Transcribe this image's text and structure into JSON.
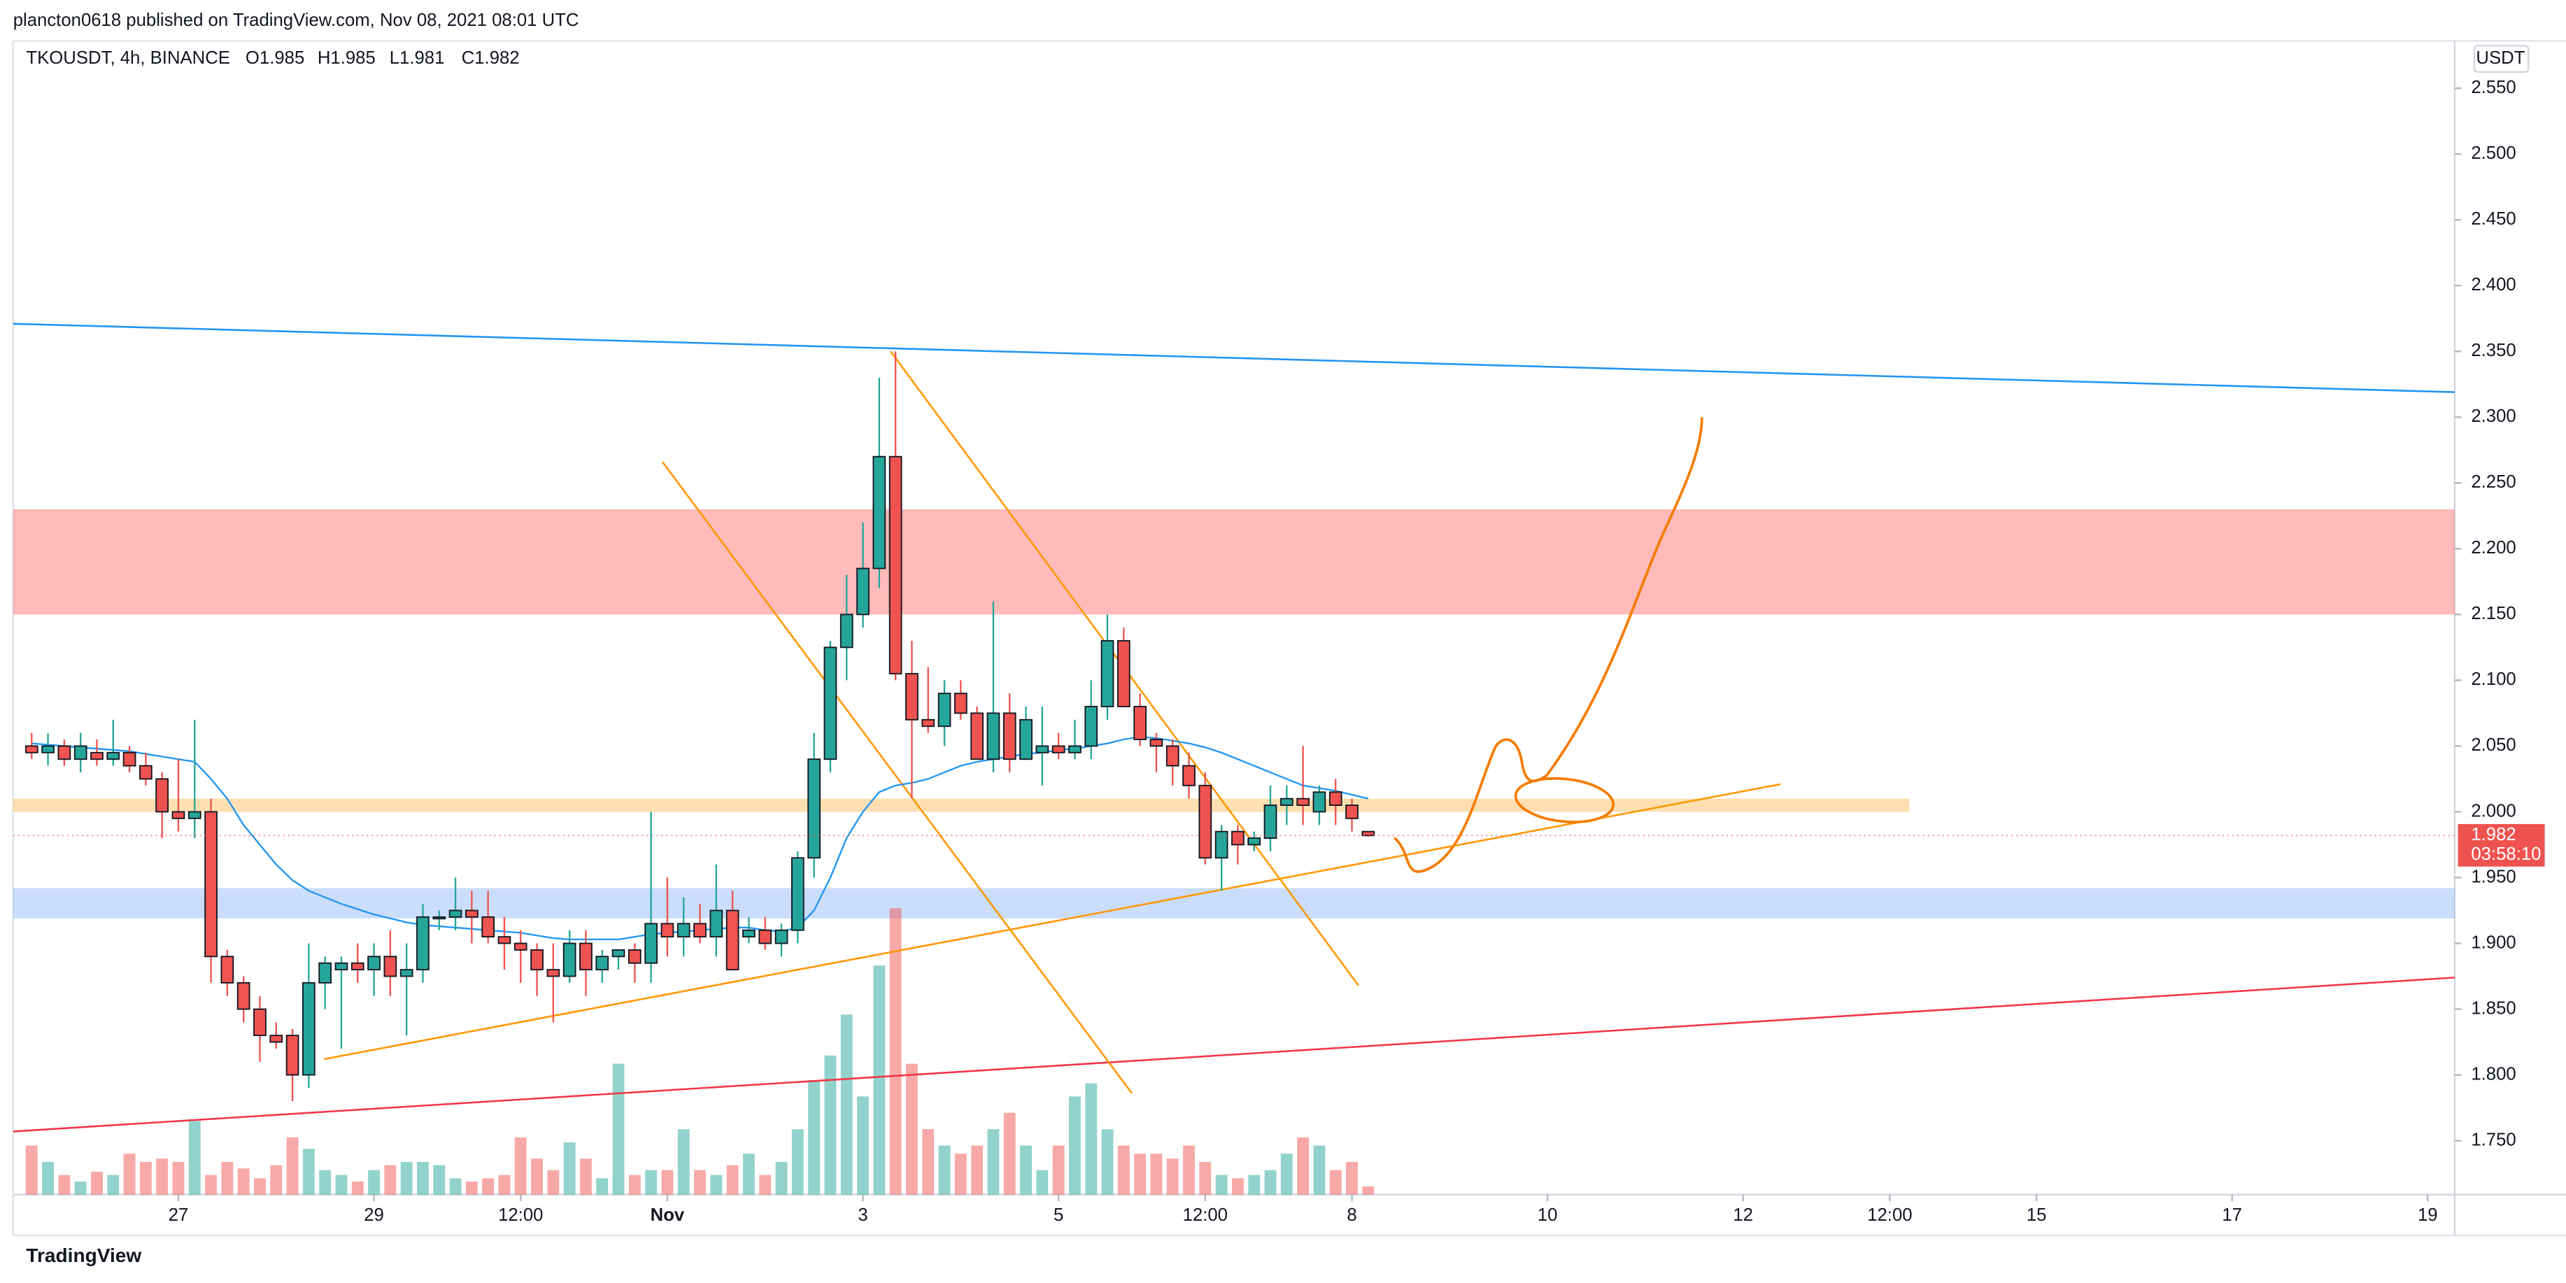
{
  "header": {
    "published": "plancton0618 published on TradingView.com, Nov 08, 2021 08:01 UTC"
  },
  "footer": {
    "brand": "TradingView"
  },
  "chart_data": {
    "type": "candlestick",
    "symbol": "TKOUSDT, 4h, BINANCE",
    "ohlc_labels": [
      "O1.985",
      "H1.985",
      "L1.981",
      "C1.982"
    ],
    "currency": "USDT",
    "up_color": "#26a69a",
    "down_color": "#ef5350",
    "x": [
      -9,
      -8,
      -7,
      -6,
      -5,
      -4,
      -3,
      -2,
      -1,
      0,
      1,
      2,
      3,
      4,
      5,
      6,
      7,
      8,
      9,
      10,
      11,
      12,
      13,
      14,
      15,
      16,
      17,
      18,
      19,
      20,
      21,
      22,
      23,
      24,
      25,
      26,
      27,
      28,
      29,
      30,
      31,
      32,
      33,
      34,
      35,
      36,
      37,
      38,
      39,
      40,
      41,
      42,
      43,
      44,
      45,
      46,
      47,
      48,
      49,
      50,
      51,
      52,
      53,
      54,
      55,
      56,
      57,
      58,
      59,
      60,
      61,
      62,
      63,
      64,
      65,
      66,
      67,
      68,
      69,
      70,
      71,
      72,
      73
    ],
    "candles": [
      [
        2.05,
        2.06,
        2.04,
        2.045
      ],
      [
        2.045,
        2.06,
        2.035,
        2.05
      ],
      [
        2.05,
        2.055,
        2.035,
        2.04
      ],
      [
        2.04,
        2.06,
        2.03,
        2.05
      ],
      [
        2.045,
        2.055,
        2.035,
        2.04
      ],
      [
        2.04,
        2.07,
        2.035,
        2.045
      ],
      [
        2.045,
        2.05,
        2.03,
        2.035
      ],
      [
        2.035,
        2.045,
        2.02,
        2.025
      ],
      [
        2.025,
        2.03,
        1.98,
        2.0
      ],
      [
        2.0,
        2.04,
        1.985,
        1.995
      ],
      [
        1.995,
        2.07,
        1.98,
        2.0
      ],
      [
        2.0,
        2.01,
        1.87,
        1.89
      ],
      [
        1.89,
        1.895,
        1.86,
        1.87
      ],
      [
        1.87,
        1.875,
        1.84,
        1.85
      ],
      [
        1.85,
        1.86,
        1.81,
        1.83
      ],
      [
        1.83,
        1.84,
        1.82,
        1.825
      ],
      [
        1.83,
        1.835,
        1.78,
        1.8
      ],
      [
        1.8,
        1.9,
        1.79,
        1.87
      ],
      [
        1.87,
        1.89,
        1.85,
        1.885
      ],
      [
        1.88,
        1.89,
        1.82,
        1.885
      ],
      [
        1.885,
        1.9,
        1.87,
        1.88
      ],
      [
        1.88,
        1.9,
        1.86,
        1.89
      ],
      [
        1.89,
        1.91,
        1.86,
        1.875
      ],
      [
        1.875,
        1.9,
        1.83,
        1.88
      ],
      [
        1.88,
        1.93,
        1.87,
        1.92
      ],
      [
        1.92,
        1.925,
        1.91,
        1.92
      ],
      [
        1.92,
        1.95,
        1.91,
        1.925
      ],
      [
        1.925,
        1.94,
        1.9,
        1.92
      ],
      [
        1.92,
        1.94,
        1.9,
        1.905
      ],
      [
        1.905,
        1.92,
        1.88,
        1.9
      ],
      [
        1.9,
        1.91,
        1.87,
        1.895
      ],
      [
        1.895,
        1.9,
        1.86,
        1.88
      ],
      [
        1.88,
        1.9,
        1.84,
        1.875
      ],
      [
        1.875,
        1.91,
        1.87,
        1.9
      ],
      [
        1.9,
        1.91,
        1.86,
        1.88
      ],
      [
        1.88,
        1.895,
        1.87,
        1.89
      ],
      [
        1.89,
        1.895,
        1.88,
        1.895
      ],
      [
        1.895,
        1.9,
        1.87,
        1.885
      ],
      [
        1.885,
        2.0,
        1.87,
        1.915
      ],
      [
        1.915,
        1.95,
        1.89,
        1.905
      ],
      [
        1.905,
        1.935,
        1.89,
        1.915
      ],
      [
        1.915,
        1.93,
        1.9,
        1.905
      ],
      [
        1.905,
        1.96,
        1.89,
        1.925
      ],
      [
        1.925,
        1.94,
        1.88,
        1.88
      ],
      [
        1.905,
        1.92,
        1.9,
        1.91
      ],
      [
        1.91,
        1.92,
        1.895,
        1.9
      ],
      [
        1.9,
        1.915,
        1.89,
        1.91
      ],
      [
        1.91,
        1.97,
        1.9,
        1.965
      ],
      [
        1.965,
        2.06,
        1.95,
        2.04
      ],
      [
        2.04,
        2.13,
        2.03,
        2.125
      ],
      [
        2.125,
        2.18,
        2.1,
        2.15
      ],
      [
        2.15,
        2.22,
        2.14,
        2.185
      ],
      [
        2.185,
        2.33,
        2.17,
        2.27
      ],
      [
        2.27,
        2.35,
        2.1,
        2.105
      ],
      [
        2.105,
        2.13,
        2.01,
        2.07
      ],
      [
        2.07,
        2.11,
        2.06,
        2.065
      ],
      [
        2.065,
        2.1,
        2.05,
        2.09
      ],
      [
        2.09,
        2.1,
        2.07,
        2.075
      ],
      [
        2.075,
        2.08,
        2.04,
        2.04
      ],
      [
        2.04,
        2.16,
        2.03,
        2.075
      ],
      [
        2.075,
        2.09,
        2.03,
        2.04
      ],
      [
        2.04,
        2.08,
        2.04,
        2.07
      ],
      [
        2.045,
        2.08,
        2.02,
        2.05
      ],
      [
        2.05,
        2.06,
        2.04,
        2.045
      ],
      [
        2.045,
        2.07,
        2.04,
        2.05
      ],
      [
        2.05,
        2.1,
        2.04,
        2.08
      ],
      [
        2.08,
        2.15,
        2.07,
        2.13
      ],
      [
        2.13,
        2.14,
        2.08,
        2.08
      ],
      [
        2.08,
        2.09,
        2.05,
        2.055
      ],
      [
        2.055,
        2.06,
        2.03,
        2.05
      ],
      [
        2.05,
        2.055,
        2.02,
        2.035
      ],
      [
        2.035,
        2.045,
        2.01,
        2.02
      ],
      [
        2.02,
        2.03,
        1.96,
        1.965
      ],
      [
        1.965,
        1.99,
        1.94,
        1.985
      ],
      [
        1.985,
        1.99,
        1.96,
        1.975
      ],
      [
        1.975,
        1.985,
        1.97,
        1.98
      ],
      [
        1.98,
        2.02,
        1.97,
        2.005
      ],
      [
        2.005,
        2.02,
        1.99,
        2.01
      ],
      [
        2.01,
        2.05,
        1.99,
        2.005
      ],
      [
        2.0,
        2.02,
        1.99,
        2.015
      ],
      [
        2.015,
        2.025,
        1.99,
        2.005
      ],
      [
        2.005,
        2.01,
        1.985,
        1.995
      ],
      [
        1.985,
        1.985,
        1.981,
        1.982
      ]
    ],
    "volumes": [
      30,
      20,
      12,
      8,
      14,
      12,
      25,
      20,
      22,
      20,
      45,
      12,
      20,
      16,
      10,
      18,
      35,
      28,
      15,
      12,
      8,
      15,
      18,
      20,
      20,
      18,
      10,
      8,
      10,
      12,
      35,
      22,
      15,
      32,
      22,
      10,
      80,
      12,
      15,
      15,
      40,
      15,
      12,
      18,
      25,
      12,
      20,
      40,
      70,
      85,
      110,
      60,
      140,
      175,
      80,
      40,
      30,
      25,
      30,
      40,
      50,
      30,
      15,
      30,
      60,
      68,
      40,
      30,
      25,
      25,
      22,
      30,
      20,
      12,
      10,
      12,
      15,
      25,
      35,
      30,
      15,
      20,
      5
    ],
    "ma": {
      "color": "#2196f3",
      "values": [
        2.052,
        2.051,
        2.05,
        2.049,
        2.048,
        2.047,
        2.046,
        2.044,
        2.042,
        2.04,
        2.038,
        2.025,
        2.01,
        1.99,
        1.975,
        1.96,
        1.948,
        1.94,
        1.935,
        1.93,
        1.926,
        1.922,
        1.919,
        1.916,
        1.914,
        1.913,
        1.912,
        1.911,
        1.91,
        1.909,
        1.908,
        1.906,
        1.904,
        1.903,
        1.903,
        1.903,
        1.903,
        1.905,
        1.907,
        1.908,
        1.909,
        1.91,
        1.911,
        1.912,
        1.912,
        1.91,
        1.909,
        1.912,
        1.925,
        1.95,
        1.98,
        2.0,
        2.015,
        2.02,
        2.022,
        2.025,
        2.03,
        2.035,
        2.038,
        2.04,
        2.042,
        2.044,
        2.045,
        2.047,
        2.048,
        2.05,
        2.052,
        2.055,
        2.057,
        2.056,
        2.054,
        2.052,
        2.049,
        2.045,
        2.04,
        2.035,
        2.03,
        2.025,
        2.02,
        2.018,
        2.016,
        2.013,
        2.01
      ]
    },
    "xlim": [
      -10.14,
      139.66
    ],
    "ylim": [
      1.709,
      2.586
    ],
    "xticks": [
      {
        "value": 0,
        "label": "27"
      },
      {
        "value": 12,
        "label": "29"
      },
      {
        "value": 21,
        "label": "12:00"
      },
      {
        "value": 30,
        "label": "Nov"
      },
      {
        "value": 42,
        "label": "3"
      },
      {
        "value": 54,
        "label": "5"
      },
      {
        "value": 63,
        "label": "12:00"
      },
      {
        "value": 72,
        "label": "8"
      },
      {
        "value": 84,
        "label": "10"
      },
      {
        "value": 96,
        "label": "12"
      },
      {
        "value": 105,
        "label": "12:00"
      },
      {
        "value": 114,
        "label": "15"
      },
      {
        "value": 126,
        "label": "17"
      },
      {
        "value": 138,
        "label": "19"
      }
    ],
    "yticks": [
      {
        "value": 1.75,
        "label": "1.750"
      },
      {
        "value": 1.8,
        "label": "1.800"
      },
      {
        "value": 1.85,
        "label": "1.850"
      },
      {
        "value": 1.9,
        "label": "1.900"
      },
      {
        "value": 1.95,
        "label": "1.950"
      },
      {
        "value": 2.0,
        "label": "2.000"
      },
      {
        "value": 2.05,
        "label": "2.050"
      },
      {
        "value": 2.1,
        "label": "2.100"
      },
      {
        "value": 2.15,
        "label": "2.150"
      },
      {
        "value": 2.2,
        "label": "2.200"
      },
      {
        "value": 2.25,
        "label": "2.250"
      },
      {
        "value": 2.3,
        "label": "2.300"
      },
      {
        "value": 2.35,
        "label": "2.350"
      },
      {
        "value": 2.4,
        "label": "2.400"
      },
      {
        "value": 2.45,
        "label": "2.450"
      },
      {
        "value": 2.5,
        "label": "2.500"
      },
      {
        "value": 2.55,
        "label": "2.550"
      }
    ],
    "zones": [
      {
        "from": 2.15,
        "to": 2.23,
        "x_end": 139.66,
        "color": "rgba(255,82,82,0.4)"
      },
      {
        "from": 2.0,
        "to": 2.01,
        "x_end": 106.2,
        "color": "rgba(255,183,77,0.45)"
      },
      {
        "from": 1.919,
        "to": 1.942,
        "x_end": 139.66,
        "color": "rgba(66,133,244,0.28)"
      }
    ],
    "lines": [
      {
        "x": [
          -10.14,
          139.66
        ],
        "y": [
          2.371,
          2.319
        ],
        "color": "#2196f3"
      },
      {
        "x": [
          -10.14,
          139.66
        ],
        "y": [
          1.757,
          1.874
        ],
        "color": "#f23645"
      },
      {
        "x": [
          8.94,
          98.3
        ],
        "y": [
          1.812,
          2.021
        ],
        "color": "#ff9800"
      },
      {
        "x": [
          29.7,
          58.5
        ],
        "y": [
          2.266,
          1.786
        ],
        "color": "#ff9800"
      },
      {
        "x": [
          43.7,
          72.4
        ],
        "y": [
          2.35,
          1.868
        ],
        "color": "#ff9800"
      }
    ],
    "last_price": {
      "value": 1.982,
      "label": "1.982",
      "countdown": "03:58:10",
      "color": "#ef5350"
    }
  }
}
